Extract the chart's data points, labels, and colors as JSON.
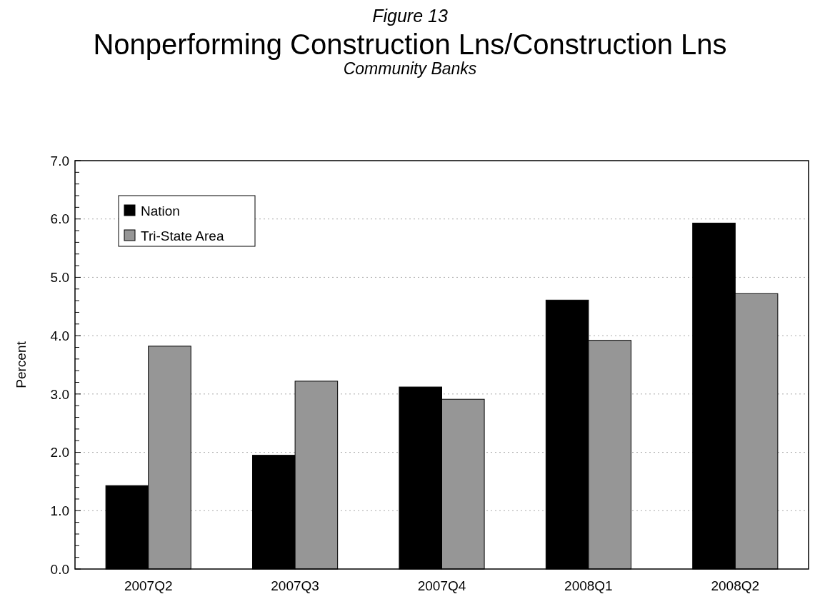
{
  "chart_data": {
    "type": "bar",
    "title": "Nonperforming Construction Lns/Construction Lns",
    "subtitle": "Community Banks",
    "annotations": [
      "Figure 13"
    ],
    "ylabel": "Percent",
    "categories": [
      "2007Q2",
      "2007Q3",
      "2007Q4",
      "2008Q1",
      "2008Q2"
    ],
    "series": [
      {
        "name": "Nation",
        "color": "#000000",
        "values": [
          1.43,
          1.95,
          3.12,
          4.61,
          5.93
        ]
      },
      {
        "name": "Tri-State Area",
        "color": "#969696",
        "values": [
          3.82,
          3.22,
          2.91,
          3.92,
          4.72
        ]
      }
    ],
    "ylim": [
      0,
      7
    ],
    "yticks": [
      {
        "value": 0,
        "label": "0.0"
      },
      {
        "value": 0.2,
        "label": null
      },
      {
        "value": 0.4,
        "label": null
      },
      {
        "value": 0.6,
        "label": null
      },
      {
        "value": 0.8,
        "label": null
      },
      {
        "value": 1,
        "label": "1.0"
      },
      {
        "value": 1.2,
        "label": null
      },
      {
        "value": 1.4,
        "label": null
      },
      {
        "value": 1.6,
        "label": null
      },
      {
        "value": 1.8,
        "label": null
      },
      {
        "value": 2,
        "label": "2.0"
      },
      {
        "value": 2.2,
        "label": null
      },
      {
        "value": 2.4,
        "label": null
      },
      {
        "value": 2.6,
        "label": null
      },
      {
        "value": 2.8,
        "label": null
      },
      {
        "value": 3,
        "label": "3.0"
      },
      {
        "value": 3.2,
        "label": null
      },
      {
        "value": 3.4,
        "label": null
      },
      {
        "value": 3.6,
        "label": null
      },
      {
        "value": 3.8,
        "label": null
      },
      {
        "value": 4,
        "label": "4.0"
      },
      {
        "value": 4.2,
        "label": null
      },
      {
        "value": 4.4,
        "label": null
      },
      {
        "value": 4.6,
        "label": null
      },
      {
        "value": 4.8,
        "label": null
      },
      {
        "value": 5,
        "label": "5.0"
      },
      {
        "value": 5.2,
        "label": null
      },
      {
        "value": 5.4,
        "label": null
      },
      {
        "value": 5.6,
        "label": null
      },
      {
        "value": 5.8,
        "label": null
      },
      {
        "value": 6,
        "label": "6.0"
      },
      {
        "value": 6.2,
        "label": null
      },
      {
        "value": 6.4,
        "label": null
      },
      {
        "value": 6.6,
        "label": null
      },
      {
        "value": 6.8,
        "label": null
      },
      {
        "value": 7,
        "label": "7.0"
      }
    ],
    "grid": "y",
    "legend": "top left"
  }
}
